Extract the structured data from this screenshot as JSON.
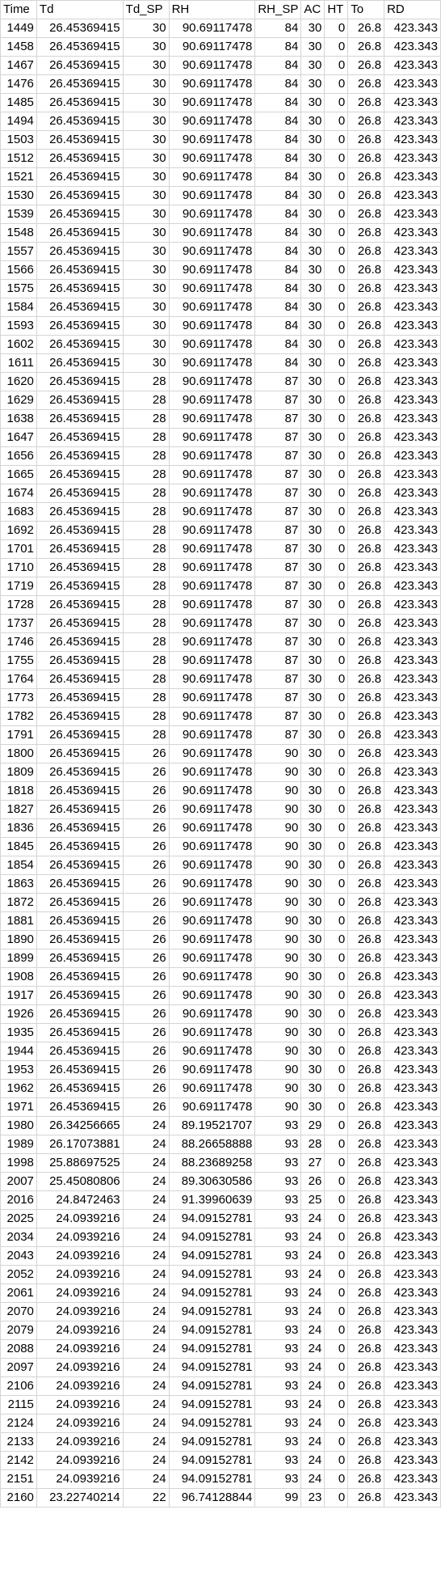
{
  "columns": [
    "Time",
    "Td",
    "Td_SP",
    "RH",
    "RH_SP",
    "AC",
    "HT",
    "To",
    "RD"
  ],
  "rows": [
    [
      "1449",
      "26.45369415",
      "30",
      "90.69117478",
      "84",
      "30",
      "0",
      "26.8",
      "423.343"
    ],
    [
      "1458",
      "26.45369415",
      "30",
      "90.69117478",
      "84",
      "30",
      "0",
      "26.8",
      "423.343"
    ],
    [
      "1467",
      "26.45369415",
      "30",
      "90.69117478",
      "84",
      "30",
      "0",
      "26.8",
      "423.343"
    ],
    [
      "1476",
      "26.45369415",
      "30",
      "90.69117478",
      "84",
      "30",
      "0",
      "26.8",
      "423.343"
    ],
    [
      "1485",
      "26.45369415",
      "30",
      "90.69117478",
      "84",
      "30",
      "0",
      "26.8",
      "423.343"
    ],
    [
      "1494",
      "26.45369415",
      "30",
      "90.69117478",
      "84",
      "30",
      "0",
      "26.8",
      "423.343"
    ],
    [
      "1503",
      "26.45369415",
      "30",
      "90.69117478",
      "84",
      "30",
      "0",
      "26.8",
      "423.343"
    ],
    [
      "1512",
      "26.45369415",
      "30",
      "90.69117478",
      "84",
      "30",
      "0",
      "26.8",
      "423.343"
    ],
    [
      "1521",
      "26.45369415",
      "30",
      "90.69117478",
      "84",
      "30",
      "0",
      "26.8",
      "423.343"
    ],
    [
      "1530",
      "26.45369415",
      "30",
      "90.69117478",
      "84",
      "30",
      "0",
      "26.8",
      "423.343"
    ],
    [
      "1539",
      "26.45369415",
      "30",
      "90.69117478",
      "84",
      "30",
      "0",
      "26.8",
      "423.343"
    ],
    [
      "1548",
      "26.45369415",
      "30",
      "90.69117478",
      "84",
      "30",
      "0",
      "26.8",
      "423.343"
    ],
    [
      "1557",
      "26.45369415",
      "30",
      "90.69117478",
      "84",
      "30",
      "0",
      "26.8",
      "423.343"
    ],
    [
      "1566",
      "26.45369415",
      "30",
      "90.69117478",
      "84",
      "30",
      "0",
      "26.8",
      "423.343"
    ],
    [
      "1575",
      "26.45369415",
      "30",
      "90.69117478",
      "84",
      "30",
      "0",
      "26.8",
      "423.343"
    ],
    [
      "1584",
      "26.45369415",
      "30",
      "90.69117478",
      "84",
      "30",
      "0",
      "26.8",
      "423.343"
    ],
    [
      "1593",
      "26.45369415",
      "30",
      "90.69117478",
      "84",
      "30",
      "0",
      "26.8",
      "423.343"
    ],
    [
      "1602",
      "26.45369415",
      "30",
      "90.69117478",
      "84",
      "30",
      "0",
      "26.8",
      "423.343"
    ],
    [
      "1611",
      "26.45369415",
      "30",
      "90.69117478",
      "84",
      "30",
      "0",
      "26.8",
      "423.343"
    ],
    [
      "1620",
      "26.45369415",
      "28",
      "90.69117478",
      "87",
      "30",
      "0",
      "26.8",
      "423.343"
    ],
    [
      "1629",
      "26.45369415",
      "28",
      "90.69117478",
      "87",
      "30",
      "0",
      "26.8",
      "423.343"
    ],
    [
      "1638",
      "26.45369415",
      "28",
      "90.69117478",
      "87",
      "30",
      "0",
      "26.8",
      "423.343"
    ],
    [
      "1647",
      "26.45369415",
      "28",
      "90.69117478",
      "87",
      "30",
      "0",
      "26.8",
      "423.343"
    ],
    [
      "1656",
      "26.45369415",
      "28",
      "90.69117478",
      "87",
      "30",
      "0",
      "26.8",
      "423.343"
    ],
    [
      "1665",
      "26.45369415",
      "28",
      "90.69117478",
      "87",
      "30",
      "0",
      "26.8",
      "423.343"
    ],
    [
      "1674",
      "26.45369415",
      "28",
      "90.69117478",
      "87",
      "30",
      "0",
      "26.8",
      "423.343"
    ],
    [
      "1683",
      "26.45369415",
      "28",
      "90.69117478",
      "87",
      "30",
      "0",
      "26.8",
      "423.343"
    ],
    [
      "1692",
      "26.45369415",
      "28",
      "90.69117478",
      "87",
      "30",
      "0",
      "26.8",
      "423.343"
    ],
    [
      "1701",
      "26.45369415",
      "28",
      "90.69117478",
      "87",
      "30",
      "0",
      "26.8",
      "423.343"
    ],
    [
      "1710",
      "26.45369415",
      "28",
      "90.69117478",
      "87",
      "30",
      "0",
      "26.8",
      "423.343"
    ],
    [
      "1719",
      "26.45369415",
      "28",
      "90.69117478",
      "87",
      "30",
      "0",
      "26.8",
      "423.343"
    ],
    [
      "1728",
      "26.45369415",
      "28",
      "90.69117478",
      "87",
      "30",
      "0",
      "26.8",
      "423.343"
    ],
    [
      "1737",
      "26.45369415",
      "28",
      "90.69117478",
      "87",
      "30",
      "0",
      "26.8",
      "423.343"
    ],
    [
      "1746",
      "26.45369415",
      "28",
      "90.69117478",
      "87",
      "30",
      "0",
      "26.8",
      "423.343"
    ],
    [
      "1755",
      "26.45369415",
      "28",
      "90.69117478",
      "87",
      "30",
      "0",
      "26.8",
      "423.343"
    ],
    [
      "1764",
      "26.45369415",
      "28",
      "90.69117478",
      "87",
      "30",
      "0",
      "26.8",
      "423.343"
    ],
    [
      "1773",
      "26.45369415",
      "28",
      "90.69117478",
      "87",
      "30",
      "0",
      "26.8",
      "423.343"
    ],
    [
      "1782",
      "26.45369415",
      "28",
      "90.69117478",
      "87",
      "30",
      "0",
      "26.8",
      "423.343"
    ],
    [
      "1791",
      "26.45369415",
      "28",
      "90.69117478",
      "87",
      "30",
      "0",
      "26.8",
      "423.343"
    ],
    [
      "1800",
      "26.45369415",
      "26",
      "90.69117478",
      "90",
      "30",
      "0",
      "26.8",
      "423.343"
    ],
    [
      "1809",
      "26.45369415",
      "26",
      "90.69117478",
      "90",
      "30",
      "0",
      "26.8",
      "423.343"
    ],
    [
      "1818",
      "26.45369415",
      "26",
      "90.69117478",
      "90",
      "30",
      "0",
      "26.8",
      "423.343"
    ],
    [
      "1827",
      "26.45369415",
      "26",
      "90.69117478",
      "90",
      "30",
      "0",
      "26.8",
      "423.343"
    ],
    [
      "1836",
      "26.45369415",
      "26",
      "90.69117478",
      "90",
      "30",
      "0",
      "26.8",
      "423.343"
    ],
    [
      "1845",
      "26.45369415",
      "26",
      "90.69117478",
      "90",
      "30",
      "0",
      "26.8",
      "423.343"
    ],
    [
      "1854",
      "26.45369415",
      "26",
      "90.69117478",
      "90",
      "30",
      "0",
      "26.8",
      "423.343"
    ],
    [
      "1863",
      "26.45369415",
      "26",
      "90.69117478",
      "90",
      "30",
      "0",
      "26.8",
      "423.343"
    ],
    [
      "1872",
      "26.45369415",
      "26",
      "90.69117478",
      "90",
      "30",
      "0",
      "26.8",
      "423.343"
    ],
    [
      "1881",
      "26.45369415",
      "26",
      "90.69117478",
      "90",
      "30",
      "0",
      "26.8",
      "423.343"
    ],
    [
      "1890",
      "26.45369415",
      "26",
      "90.69117478",
      "90",
      "30",
      "0",
      "26.8",
      "423.343"
    ],
    [
      "1899",
      "26.45369415",
      "26",
      "90.69117478",
      "90",
      "30",
      "0",
      "26.8",
      "423.343"
    ],
    [
      "1908",
      "26.45369415",
      "26",
      "90.69117478",
      "90",
      "30",
      "0",
      "26.8",
      "423.343"
    ],
    [
      "1917",
      "26.45369415",
      "26",
      "90.69117478",
      "90",
      "30",
      "0",
      "26.8",
      "423.343"
    ],
    [
      "1926",
      "26.45369415",
      "26",
      "90.69117478",
      "90",
      "30",
      "0",
      "26.8",
      "423.343"
    ],
    [
      "1935",
      "26.45369415",
      "26",
      "90.69117478",
      "90",
      "30",
      "0",
      "26.8",
      "423.343"
    ],
    [
      "1944",
      "26.45369415",
      "26",
      "90.69117478",
      "90",
      "30",
      "0",
      "26.8",
      "423.343"
    ],
    [
      "1953",
      "26.45369415",
      "26",
      "90.69117478",
      "90",
      "30",
      "0",
      "26.8",
      "423.343"
    ],
    [
      "1962",
      "26.45369415",
      "26",
      "90.69117478",
      "90",
      "30",
      "0",
      "26.8",
      "423.343"
    ],
    [
      "1971",
      "26.45369415",
      "26",
      "90.69117478",
      "90",
      "30",
      "0",
      "26.8",
      "423.343"
    ],
    [
      "1980",
      "26.34256665",
      "24",
      "89.19521707",
      "93",
      "29",
      "0",
      "26.8",
      "423.343"
    ],
    [
      "1989",
      "26.17073881",
      "24",
      "88.26658888",
      "93",
      "28",
      "0",
      "26.8",
      "423.343"
    ],
    [
      "1998",
      "25.88697525",
      "24",
      "88.23689258",
      "93",
      "27",
      "0",
      "26.8",
      "423.343"
    ],
    [
      "2007",
      "25.45080806",
      "24",
      "89.30630586",
      "93",
      "26",
      "0",
      "26.8",
      "423.343"
    ],
    [
      "2016",
      "24.8472463",
      "24",
      "91.39960639",
      "93",
      "25",
      "0",
      "26.8",
      "423.343"
    ],
    [
      "2025",
      "24.0939216",
      "24",
      "94.09152781",
      "93",
      "24",
      "0",
      "26.8",
      "423.343"
    ],
    [
      "2034",
      "24.0939216",
      "24",
      "94.09152781",
      "93",
      "24",
      "0",
      "26.8",
      "423.343"
    ],
    [
      "2043",
      "24.0939216",
      "24",
      "94.09152781",
      "93",
      "24",
      "0",
      "26.8",
      "423.343"
    ],
    [
      "2052",
      "24.0939216",
      "24",
      "94.09152781",
      "93",
      "24",
      "0",
      "26.8",
      "423.343"
    ],
    [
      "2061",
      "24.0939216",
      "24",
      "94.09152781",
      "93",
      "24",
      "0",
      "26.8",
      "423.343"
    ],
    [
      "2070",
      "24.0939216",
      "24",
      "94.09152781",
      "93",
      "24",
      "0",
      "26.8",
      "423.343"
    ],
    [
      "2079",
      "24.0939216",
      "24",
      "94.09152781",
      "93",
      "24",
      "0",
      "26.8",
      "423.343"
    ],
    [
      "2088",
      "24.0939216",
      "24",
      "94.09152781",
      "93",
      "24",
      "0",
      "26.8",
      "423.343"
    ],
    [
      "2097",
      "24.0939216",
      "24",
      "94.09152781",
      "93",
      "24",
      "0",
      "26.8",
      "423.343"
    ],
    [
      "2106",
      "24.0939216",
      "24",
      "94.09152781",
      "93",
      "24",
      "0",
      "26.8",
      "423.343"
    ],
    [
      "2115",
      "24.0939216",
      "24",
      "94.09152781",
      "93",
      "24",
      "0",
      "26.8",
      "423.343"
    ],
    [
      "2124",
      "24.0939216",
      "24",
      "94.09152781",
      "93",
      "24",
      "0",
      "26.8",
      "423.343"
    ],
    [
      "2133",
      "24.0939216",
      "24",
      "94.09152781",
      "93",
      "24",
      "0",
      "26.8",
      "423.343"
    ],
    [
      "2142",
      "24.0939216",
      "24",
      "94.09152781",
      "93",
      "24",
      "0",
      "26.8",
      "423.343"
    ],
    [
      "2151",
      "24.0939216",
      "24",
      "94.09152781",
      "93",
      "24",
      "0",
      "26.8",
      "423.343"
    ],
    [
      "2160",
      "23.22740214",
      "22",
      "96.74128844",
      "99",
      "23",
      "0",
      "26.8",
      "423.343"
    ]
  ]
}
